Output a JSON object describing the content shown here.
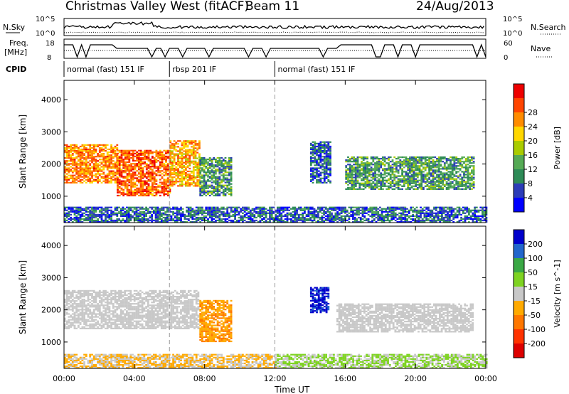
{
  "header": {
    "title": "Christmas Valley West (fitACF)",
    "beam": "Beam 11",
    "date": "24/Aug/2013"
  },
  "panel_labels": {
    "nsky": "N.Sky",
    "nsky_tick_hi": "10^5",
    "nsky_tick_lo": "10^0",
    "freq": "Freq.",
    "freq_unit": "[MHz]",
    "freq_tick_hi": "18",
    "freq_tick_lo": "8",
    "cpid": "CPID",
    "nsearch": "N.Search",
    "nsearch_tick_hi": "10^5",
    "nsearch_tick_lo": "10^0",
    "nave": "Nave",
    "nave_tick_hi": "60",
    "nave_tick_lo": "0"
  },
  "cpid_segments": [
    {
      "label": "normal (fast) 151 IF",
      "start_ut": 0,
      "end_ut": 6
    },
    {
      "label": "rbsp 201 IF",
      "start_ut": 6,
      "end_ut": 12
    },
    {
      "label": "normal (fast) 151 IF",
      "start_ut": 12,
      "end_ut": 24
    }
  ],
  "chart_data": [
    {
      "type": "heatmap",
      "title": "",
      "xlabel": "Time UT",
      "ylabel": "Slant Range [km]",
      "xlim": [
        0,
        24
      ],
      "ylim": [
        180,
        4600
      ],
      "x_ticks": [
        "00:00",
        "04:00",
        "08:00",
        "12:00",
        "16:00",
        "20:00",
        "00:00"
      ],
      "y_ticks": [
        1000,
        2000,
        3000,
        4000
      ],
      "colorbar": {
        "label": "Power [dB]",
        "ticks": [
          "4",
          "8",
          "12",
          "16",
          "20",
          "24",
          "28"
        ],
        "range": [
          0,
          30
        ],
        "colors": [
          "#0000ff",
          "#2c3cb8",
          "#2e8b57",
          "#55aa55",
          "#aacc00",
          "#ffd700",
          "#ff8c00",
          "#ff4500",
          "#ee0000"
        ]
      },
      "echo_regions": [
        {
          "ut": [
            0.0,
            3.0
          ],
          "range_km": [
            1400,
            2600
          ],
          "value": 22
        },
        {
          "ut": [
            3.0,
            6.0
          ],
          "range_km": [
            1000,
            2400
          ],
          "value": 24
        },
        {
          "ut": [
            6.0,
            7.7
          ],
          "range_km": [
            1300,
            2700
          ],
          "value": 20
        },
        {
          "ut": [
            7.7,
            9.5
          ],
          "range_km": [
            1000,
            2200
          ],
          "value": 10
        },
        {
          "ut": [
            14.0,
            15.2
          ],
          "range_km": [
            1400,
            2700
          ],
          "value": 6
        },
        {
          "ut": [
            16.0,
            23.3
          ],
          "range_km": [
            1200,
            2200
          ],
          "value": 10
        },
        {
          "ut": [
            0.0,
            24.0
          ],
          "range_km": [
            180,
            650
          ],
          "value": 6
        }
      ]
    },
    {
      "type": "heatmap",
      "title": "",
      "xlabel": "Time UT",
      "ylabel": "Slant Range [km]",
      "xlim": [
        0,
        24
      ],
      "ylim": [
        180,
        4600
      ],
      "x_ticks": [
        "00:00",
        "04:00",
        "08:00",
        "12:00",
        "16:00",
        "20:00",
        "00:00"
      ],
      "y_ticks": [
        1000,
        2000,
        3000,
        4000
      ],
      "colorbar": {
        "label": "Velocity [m s^-1]",
        "ticks": [
          "200",
          "100",
          "50",
          "15",
          "-15",
          "-50",
          "-100",
          "-200"
        ],
        "range": [
          -250,
          250
        ],
        "colors": [
          "#0000cc",
          "#2266cc",
          "#3aa845",
          "#7ed321",
          "#c8c8c8",
          "#ffaa00",
          "#ff7700",
          "#ff3300",
          "#dd0000"
        ]
      },
      "echo_regions": [
        {
          "ut": [
            0.0,
            7.7
          ],
          "range_km": [
            1400,
            2600
          ],
          "value": 0
        },
        {
          "ut": [
            7.7,
            9.5
          ],
          "range_km": [
            1000,
            2300
          ],
          "value": -80
        },
        {
          "ut": [
            14.0,
            15.0
          ],
          "range_km": [
            1900,
            2700
          ],
          "value": 200
        },
        {
          "ut": [
            15.5,
            23.3
          ],
          "range_km": [
            1300,
            2200
          ],
          "value": 0
        },
        {
          "ut": [
            0.0,
            12.0
          ],
          "range_km": [
            180,
            600
          ],
          "value": -30
        },
        {
          "ut": [
            12.0,
            24.0
          ],
          "range_km": [
            180,
            600
          ],
          "value": 30
        }
      ]
    }
  ]
}
